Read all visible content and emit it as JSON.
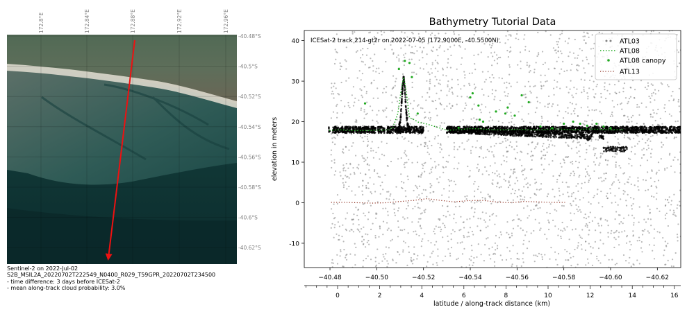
{
  "left_panel": {
    "type": "map",
    "lon_ticks": [
      "172.8°E",
      "172.84°E",
      "172.88°E",
      "172.92°E",
      "172.96°E"
    ],
    "lat_ticks": [
      "-40.48°S",
      "-40.5°S",
      "-40.52°S",
      "-40.54°S",
      "-40.56°S",
      "-40.58°S",
      "-40.6°S",
      "-40.62°S"
    ],
    "track_color": "#ee1111",
    "caption": [
      "Sentinel-2 on 2022-Jul-02",
      "S2B_MSIL2A_20220702T222549_N0400_R029_T59GPR_20220702T234500",
      "- time difference: 3 days before ICESat-2",
      "- mean along-track cloud probability: 3.0%"
    ]
  },
  "chart_data": {
    "type": "scatter",
    "title": "Bathymetry Tutorial Data",
    "annotation": "ICESat-2 track 214-gt2r on 2022-07-05 (172.9000E, -40.5500N)",
    "ylabel": "elevation in meters",
    "xlabel": "latitude / along-track distance (km)",
    "xlim": [
      -40.469,
      -40.63
    ],
    "ylim": [
      -16,
      42.5
    ],
    "yticks": [
      -10,
      0,
      10,
      20,
      30,
      40
    ],
    "lat_ticks": [
      -40.48,
      -40.5,
      -40.52,
      -40.54,
      -40.56,
      -40.58,
      -40.6,
      -40.62
    ],
    "lat_tick_labels": [
      "−40.48",
      "−40.50",
      "−40.52",
      "−40.54",
      "−40.56",
      "−40.58",
      "−40.60",
      "−40.62"
    ],
    "dist_ticks": [
      0,
      2,
      4,
      6,
      8,
      10,
      12,
      14,
      16
    ],
    "dist_tick_labels": [
      "0",
      "2",
      "4",
      "6",
      "8",
      "10",
      "12",
      "14",
      "16"
    ],
    "legend_placement": "top-right",
    "series": [
      {
        "name": "ATL03",
        "style": "points",
        "color": "#808080"
      },
      {
        "name": "ATL08",
        "style": "dotted-line",
        "color": "#22aa22",
        "points": [
          [
            -40.4797,
            17.8
          ],
          [
            -40.481,
            17.9
          ],
          [
            -40.484,
            18.0
          ],
          [
            -40.487,
            17.9
          ],
          [
            -40.49,
            17.8
          ],
          [
            -40.493,
            17.8
          ],
          [
            -40.496,
            17.8
          ],
          [
            -40.499,
            17.9
          ],
          [
            -40.502,
            17.9
          ],
          [
            -40.505,
            18.0
          ],
          [
            -40.507,
            18.6
          ],
          [
            -40.509,
            22.0
          ],
          [
            -40.5105,
            28.0
          ],
          [
            -40.5115,
            31.0
          ],
          [
            -40.5125,
            28.0
          ],
          [
            -40.514,
            21.0
          ],
          [
            -40.516,
            20.5
          ],
          [
            -40.518,
            19.8
          ],
          [
            -40.521,
            19.5
          ],
          [
            -40.525,
            18.8
          ],
          [
            -40.53,
            17.9
          ],
          [
            -40.535,
            18.0
          ],
          [
            -40.54,
            18.3
          ],
          [
            -40.545,
            18.2
          ],
          [
            -40.55,
            18.0
          ],
          [
            -40.555,
            18.0
          ],
          [
            -40.56,
            18.1
          ],
          [
            -40.565,
            18.0
          ],
          [
            -40.57,
            18.0
          ],
          [
            -40.575,
            18.2
          ],
          [
            -40.58,
            18.1
          ],
          [
            -40.585,
            18.0
          ],
          [
            -40.59,
            18.2
          ],
          [
            -40.595,
            18.1
          ],
          [
            -40.6,
            18.0
          ],
          [
            -40.606,
            18.0
          ]
        ]
      },
      {
        "name": "ATL08 canopy",
        "style": "points",
        "color": "#22aa22",
        "points": [
          [
            -40.495,
            24.5
          ],
          [
            -40.5095,
            33.0
          ],
          [
            -40.512,
            35.0
          ],
          [
            -40.514,
            34.5
          ],
          [
            -40.515,
            31.0
          ],
          [
            -40.5175,
            22.0
          ],
          [
            -40.535,
            18.5
          ],
          [
            -40.54,
            26.0
          ],
          [
            -40.541,
            27.0
          ],
          [
            -40.5435,
            24.0
          ],
          [
            -40.544,
            20.5
          ],
          [
            -40.5455,
            20.0
          ],
          [
            -40.551,
            22.5
          ],
          [
            -40.555,
            22.0
          ],
          [
            -40.556,
            23.5
          ],
          [
            -40.559,
            21.5
          ],
          [
            -40.562,
            26.5
          ],
          [
            -40.565,
            24.8
          ],
          [
            -40.57,
            18.8
          ],
          [
            -40.575,
            18.4
          ],
          [
            -40.58,
            19.5
          ],
          [
            -40.584,
            20.0
          ],
          [
            -40.587,
            19.5
          ],
          [
            -40.59,
            19.0
          ],
          [
            -40.594,
            19.5
          ],
          [
            -40.597,
            18.8
          ],
          [
            -40.6,
            18.4
          ]
        ]
      },
      {
        "name": "ATL13",
        "style": "dotted-line",
        "color": "#8b2a1a",
        "points": [
          [
            -40.4805,
            0.1
          ],
          [
            -40.486,
            0.1
          ],
          [
            -40.492,
            0.0
          ],
          [
            -40.498,
            -0.1
          ],
          [
            -40.504,
            0.0
          ],
          [
            -40.51,
            0.3
          ],
          [
            -40.516,
            0.6
          ],
          [
            -40.5215,
            1.0
          ],
          [
            -40.527,
            0.6
          ],
          [
            -40.533,
            0.2
          ],
          [
            -40.539,
            0.5
          ],
          [
            -40.545,
            0.6
          ],
          [
            -40.551,
            0.2
          ],
          [
            -40.557,
            0.0
          ],
          [
            -40.563,
            0.3
          ],
          [
            -40.569,
            0.2
          ],
          [
            -40.575,
            0.1
          ],
          [
            -40.5805,
            0.1
          ]
        ]
      }
    ]
  }
}
